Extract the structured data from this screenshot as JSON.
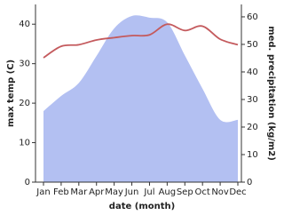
{
  "chart_data": {
    "type": "line-area",
    "xlabel": "date (month)",
    "ylabel": "max temp (C)",
    "y2label": "med. precipitation (kg/m2)",
    "categories": [
      "Jan",
      "Feb",
      "Mar",
      "Apr",
      "May",
      "Jun",
      "Jul",
      "Aug",
      "Sep",
      "Oct",
      "Nov",
      "Dec"
    ],
    "series": [
      {
        "name": "med. precipitation",
        "color": "#b3c0f2",
        "axis": "y2",
        "kind": "area",
        "values": [
          25.8,
          31.3,
          36,
          45.8,
          55.8,
          60.3,
          59.7,
          58,
          46,
          33.9,
          22.6,
          22.6
        ]
      },
      {
        "name": "max temp",
        "color": "#c45a5d",
        "axis": "y",
        "kind": "line",
        "values": [
          31.5,
          34.4,
          34.8,
          36,
          36.6,
          37.1,
          37.3,
          40,
          38.4,
          39.5,
          36.2,
          34.8
        ]
      }
    ],
    "ylim": [
      0,
      45
    ],
    "yticks": [
      0,
      10,
      20,
      30,
      40
    ],
    "y2lim": [
      0,
      64.5
    ],
    "y2ticks": [
      0,
      10,
      20,
      30,
      40,
      50,
      60
    ]
  }
}
